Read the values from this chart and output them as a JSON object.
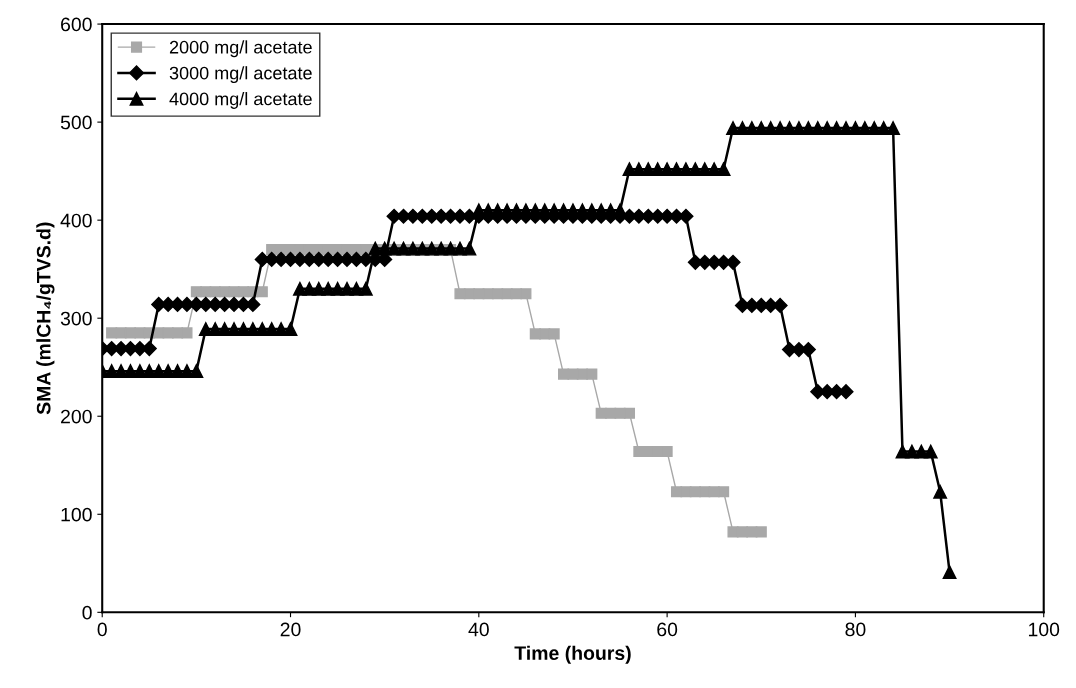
{
  "chart_data": {
    "type": "line",
    "xlabel": "Time (hours)",
    "ylabel": "SMA (mlCH₄/gTVS.d)",
    "xlim": [
      0,
      100
    ],
    "xticks": [
      0,
      20,
      40,
      60,
      80,
      100
    ],
    "ylim": [
      0,
      600
    ],
    "yticks": [
      0,
      100,
      200,
      300,
      400,
      500,
      600
    ],
    "grid": false,
    "legend": "top left",
    "line_style": "solid",
    "series": [
      {
        "name": "2000 mg/l acetate",
        "color": "#a8a8a8",
        "marker": "square",
        "x": [
          1,
          2,
          3,
          4,
          5,
          6,
          7,
          8,
          9,
          10,
          11,
          12,
          13,
          14,
          15,
          16,
          17,
          18,
          19,
          20,
          21,
          22,
          23,
          24,
          25,
          26,
          27,
          28,
          29,
          30,
          31,
          32,
          33,
          34,
          35,
          36,
          37,
          38,
          39,
          40,
          41,
          42,
          43,
          44,
          45,
          46,
          47,
          48,
          49,
          50,
          51,
          52,
          53,
          54,
          55,
          56,
          57,
          58,
          59,
          60,
          61,
          62,
          63,
          64,
          65,
          66,
          67,
          68,
          69,
          70
        ],
        "values": [
          285,
          285,
          285,
          285,
          285,
          285,
          285,
          285,
          285,
          327,
          327,
          327,
          327,
          327,
          327,
          327,
          327,
          370,
          370,
          370,
          370,
          370,
          370,
          370,
          370,
          370,
          370,
          370,
          370,
          370,
          370,
          370,
          370,
          370,
          370,
          370,
          370,
          325,
          325,
          325,
          325,
          325,
          325,
          325,
          325,
          284,
          284,
          284,
          243,
          243,
          243,
          243,
          203,
          203,
          203,
          203,
          164,
          164,
          164,
          164,
          123,
          123,
          123,
          123,
          123,
          123,
          82,
          82,
          82,
          82
        ]
      },
      {
        "name": "3000 mg/l acetate",
        "color": "#000000",
        "marker": "diamond",
        "x": [
          0,
          1,
          2,
          3,
          4,
          5,
          6,
          7,
          8,
          9,
          10,
          11,
          12,
          13,
          14,
          15,
          16,
          17,
          18,
          19,
          20,
          21,
          22,
          23,
          24,
          25,
          26,
          27,
          28,
          29,
          30,
          31,
          32,
          33,
          34,
          35,
          36,
          37,
          38,
          39,
          40,
          41,
          42,
          43,
          44,
          45,
          46,
          47,
          48,
          49,
          50,
          51,
          52,
          53,
          54,
          55,
          56,
          57,
          58,
          59,
          60,
          61,
          62,
          63,
          64,
          65,
          66,
          67,
          68,
          69,
          70,
          71,
          72,
          73,
          74,
          75,
          76,
          77,
          78,
          79
        ],
        "values": [
          269,
          269,
          269,
          269,
          269,
          269,
          314,
          314,
          314,
          314,
          314,
          314,
          314,
          314,
          314,
          314,
          314,
          360,
          360,
          360,
          360,
          360,
          360,
          360,
          360,
          360,
          360,
          360,
          360,
          360,
          360,
          404,
          404,
          404,
          404,
          404,
          404,
          404,
          404,
          404,
          404,
          404,
          404,
          404,
          404,
          404,
          404,
          404,
          404,
          404,
          404,
          404,
          404,
          404,
          404,
          404,
          404,
          404,
          404,
          404,
          404,
          404,
          404,
          357,
          357,
          357,
          357,
          357,
          313,
          313,
          313,
          313,
          313,
          268,
          268,
          268,
          225,
          225,
          225,
          225
        ]
      },
      {
        "name": "4000 mg/l acetate",
        "color": "#000000",
        "marker": "triangle",
        "x": [
          0,
          1,
          2,
          3,
          4,
          5,
          6,
          7,
          8,
          9,
          10,
          11,
          12,
          13,
          14,
          15,
          16,
          17,
          18,
          19,
          20,
          21,
          22,
          23,
          24,
          25,
          26,
          27,
          28,
          29,
          30,
          31,
          32,
          33,
          34,
          35,
          36,
          37,
          38,
          39,
          40,
          41,
          42,
          43,
          44,
          45,
          46,
          47,
          48,
          49,
          50,
          51,
          52,
          53,
          54,
          55,
          56,
          57,
          58,
          59,
          60,
          61,
          62,
          63,
          64,
          65,
          66,
          67,
          68,
          69,
          70,
          71,
          72,
          73,
          74,
          75,
          76,
          77,
          78,
          79,
          80,
          81,
          82,
          83,
          84,
          85,
          86,
          87,
          88,
          89,
          90
        ],
        "values": [
          246,
          246,
          246,
          246,
          246,
          246,
          246,
          246,
          246,
          246,
          246,
          289,
          289,
          289,
          289,
          289,
          289,
          289,
          289,
          289,
          289,
          330,
          330,
          330,
          330,
          330,
          330,
          330,
          330,
          371,
          371,
          371,
          371,
          371,
          371,
          371,
          371,
          371,
          371,
          371,
          410,
          410,
          410,
          410,
          410,
          410,
          410,
          410,
          410,
          410,
          410,
          410,
          410,
          410,
          410,
          410,
          452,
          452,
          452,
          452,
          452,
          452,
          452,
          452,
          452,
          452,
          452,
          494,
          494,
          494,
          494,
          494,
          494,
          494,
          494,
          494,
          494,
          494,
          494,
          494,
          494,
          494,
          494,
          494,
          494,
          164,
          164,
          164,
          164,
          123,
          41
        ]
      }
    ]
  }
}
